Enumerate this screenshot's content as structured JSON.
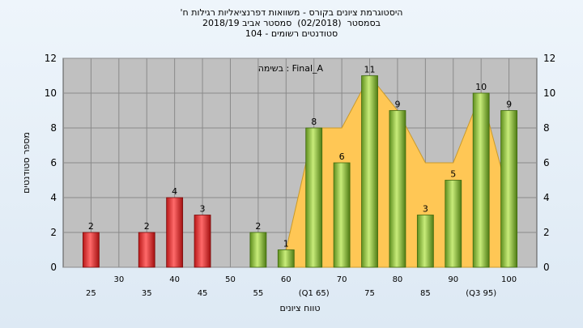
{
  "title": {
    "line1": "'היסטוגרמת ציונים בקורס - משוואות דפרנציאליות רגילות ח",
    "line2": "בסמסטר  (02/2018)  סמסטר אביב 2018/19",
    "line3": "סטודנטים רשומים - 104"
  },
  "annotation": "בשימה : Final_A",
  "chart_data": {
    "type": "bar",
    "xlabel": "טווח ציונים",
    "ylabel": "מספר סטודנטים",
    "ylim": [
      0,
      12
    ],
    "yticks": [
      0,
      2,
      4,
      6,
      8,
      10,
      12
    ],
    "grid": true,
    "x_tick_labels": [
      "25",
      "30",
      "35",
      "40",
      "45",
      "50",
      "55",
      "60",
      "(Q1 65)",
      "70",
      "75",
      "80",
      "85",
      "90",
      "(Q3 95)",
      "100"
    ],
    "categories": [
      25,
      30,
      35,
      40,
      45,
      50,
      55,
      60,
      65,
      70,
      75,
      80,
      85,
      90,
      95,
      100
    ],
    "values": [
      2,
      0,
      2,
      4,
      3,
      0,
      2,
      1,
      8,
      6,
      11,
      9,
      3,
      5,
      10,
      9
    ],
    "value_labels": [
      "2",
      "",
      "2",
      "4",
      "3",
      "",
      "2",
      "1",
      "8",
      "6",
      "11",
      "9",
      "3",
      "5",
      "10",
      "9"
    ],
    "bar_colors": [
      "#e03030",
      "#e03030",
      "#e03030",
      "#e03030",
      "#e03030",
      "#e03030",
      "#8fc23a",
      "#8fc23a",
      "#8fc23a",
      "#8fc23a",
      "#8fc23a",
      "#8fc23a",
      "#8fc23a",
      "#8fc23a",
      "#8fc23a",
      "#8fc23a"
    ],
    "area_series": [
      {
        "x": 60,
        "y": 1
      },
      {
        "x": 65,
        "y": 8
      },
      {
        "x": 70,
        "y": 8
      },
      {
        "x": 75,
        "y": 11
      },
      {
        "x": 80,
        "y": 9
      },
      {
        "x": 85,
        "y": 6
      },
      {
        "x": 90,
        "y": 6
      },
      {
        "x": 95,
        "y": 10
      },
      {
        "x": 100,
        "y": 4
      }
    ],
    "area_color": "#ffc755",
    "plot_background": "#c0c0c0"
  }
}
